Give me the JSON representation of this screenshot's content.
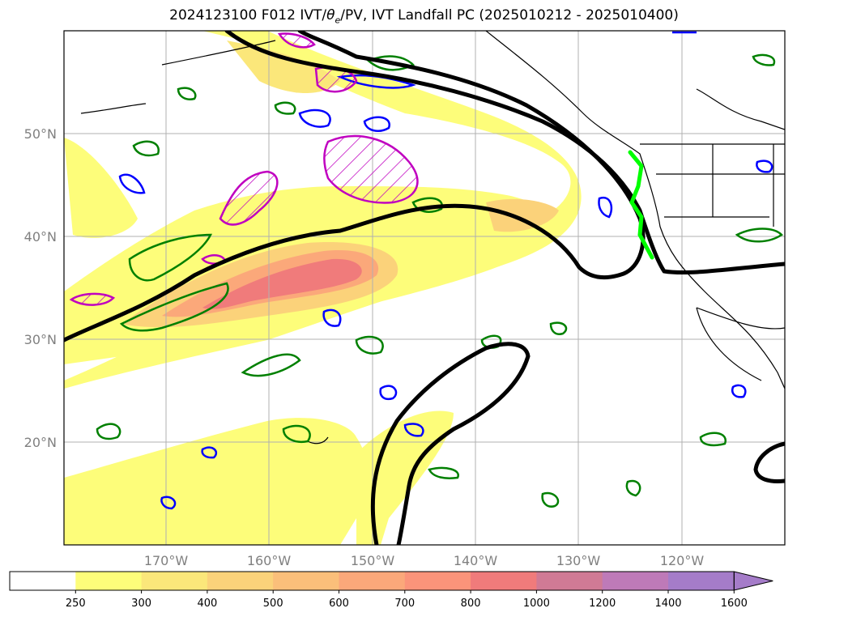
{
  "title": {
    "prefix": "2024123100 F012 IVT/",
    "theta": "θ",
    "theta_sub": "e",
    "suffix": "/PV, IVT Landfall PC (2025010212 - 2025010400)"
  },
  "lat_labels": [
    "50°N",
    "40°N",
    "30°N",
    "20°N"
  ],
  "lon_labels": [
    "170°W",
    "160°W",
    "150°W",
    "140°W",
    "130°W",
    "120°W"
  ],
  "colorbar": {
    "ticks": [
      "250",
      "300",
      "400",
      "500",
      "600",
      "700",
      "800",
      "1000",
      "1200",
      "1400",
      "1600"
    ],
    "colors": [
      "#ffffff",
      "#fdfd7a",
      "#fbe77a",
      "#fbd27a",
      "#fbbf7a",
      "#fba87a",
      "#fb947a",
      "#f07b7b",
      "#d07a95",
      "#be7ab8",
      "#a57cc9",
      "#a57cc9"
    ],
    "extend": "max"
  },
  "legend_colors": {
    "ivt_contour": "#000000",
    "landfall_line": "#00ff00",
    "pv_green": "#008000",
    "pv_blue": "#0000ff",
    "theta_magenta": "#c000c0"
  }
}
